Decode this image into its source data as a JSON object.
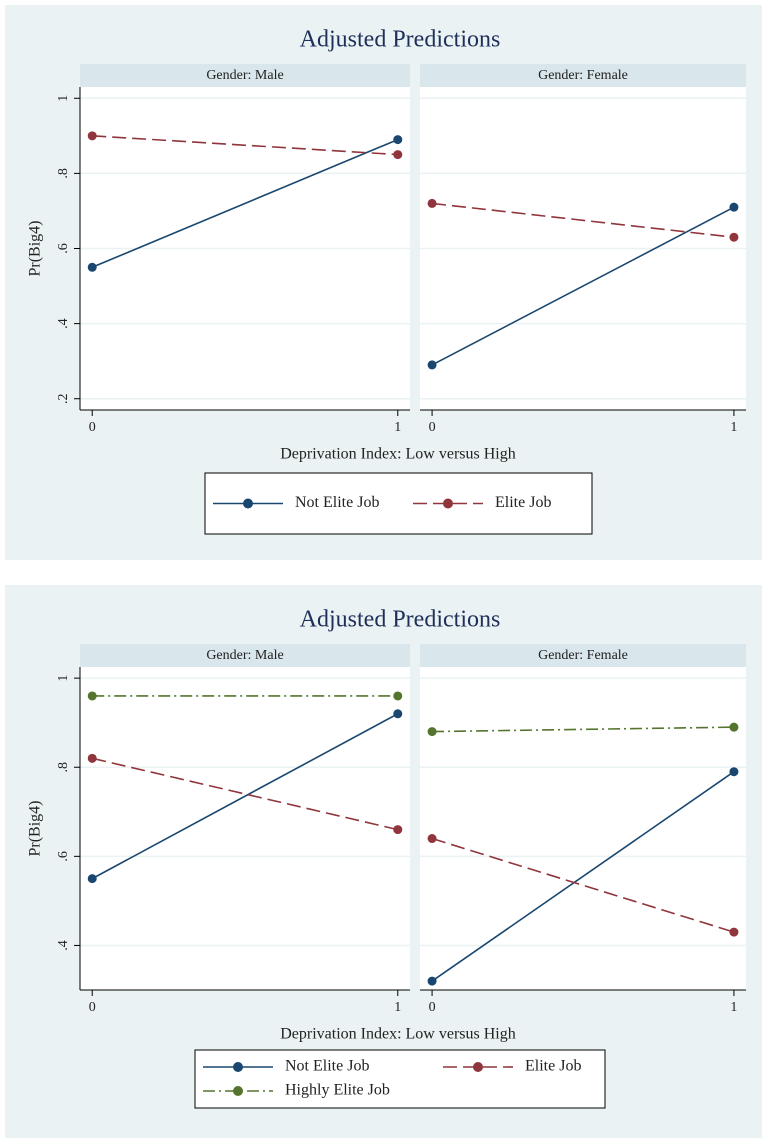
{
  "chart_data": [
    {
      "type": "line",
      "title": "Adjusted Predictions",
      "ylabel": "Pr(Big4)",
      "xlabel": "Deprivation Index: Low versus High",
      "xlim": [
        -0.04,
        1.04
      ],
      "xticks": [
        0,
        1
      ],
      "ylim": [
        0.17,
        1.03
      ],
      "yticks": [
        {
          "value": 0.2,
          "label": ".2"
        },
        {
          "value": 0.4,
          "label": ".4"
        },
        {
          "value": 0.6,
          "label": ".6"
        },
        {
          "value": 0.8,
          "label": ".8"
        },
        1
      ],
      "grid": true,
      "panels": [
        {
          "title": "Gender: Male",
          "x": [
            0,
            1
          ],
          "series": [
            {
              "name": "Not Elite Job",
              "color": "#1a476f",
              "values": [
                0.55,
                0.89
              ]
            },
            {
              "name": "Elite Job",
              "color": "#90353b",
              "values": [
                0.9,
                0.85
              ]
            }
          ]
        },
        {
          "title": "Gender: Female",
          "x": [
            0,
            1
          ],
          "series": [
            {
              "name": "Not Elite Job",
              "color": "#1a476f",
              "values": [
                0.29,
                0.71
              ]
            },
            {
              "name": "Elite Job",
              "color": "#90353b",
              "values": [
                0.72,
                0.63
              ]
            }
          ]
        }
      ]
    },
    {
      "type": "line",
      "title": "Adjusted Predictions",
      "ylabel": "Pr(Big4)",
      "xlabel": "Deprivation Index: Low versus High",
      "xlim": [
        -0.04,
        1.04
      ],
      "xticks": [
        0,
        1
      ],
      "ylim": [
        0.3,
        1.025
      ],
      "yticks": [
        {
          "value": 0.4,
          "label": ".4"
        },
        {
          "value": 0.6,
          "label": ".6"
        },
        {
          "value": 0.8,
          "label": ".8"
        },
        1
      ],
      "grid": true,
      "panels": [
        {
          "title": "Gender: Male",
          "x": [
            0,
            1
          ],
          "series": [
            {
              "name": "Not Elite Job",
              "color": "#1a476f",
              "values": [
                0.55,
                0.92
              ]
            },
            {
              "name": "Elite Job",
              "color": "#90353b",
              "values": [
                0.82,
                0.66
              ]
            },
            {
              "name": "Highly Elite Job",
              "color": "#55752f",
              "values": [
                0.96,
                0.96
              ]
            }
          ]
        },
        {
          "title": "Gender: Female",
          "x": [
            0,
            1
          ],
          "series": [
            {
              "name": "Not Elite Job",
              "color": "#1a476f",
              "values": [
                0.32,
                0.79
              ]
            },
            {
              "name": "Elite Job",
              "color": "#90353b",
              "values": [
                0.64,
                0.43
              ]
            },
            {
              "name": "Highly Elite Job",
              "color": "#55752f",
              "values": [
                0.88,
                0.89
              ]
            }
          ]
        }
      ]
    }
  ]
}
